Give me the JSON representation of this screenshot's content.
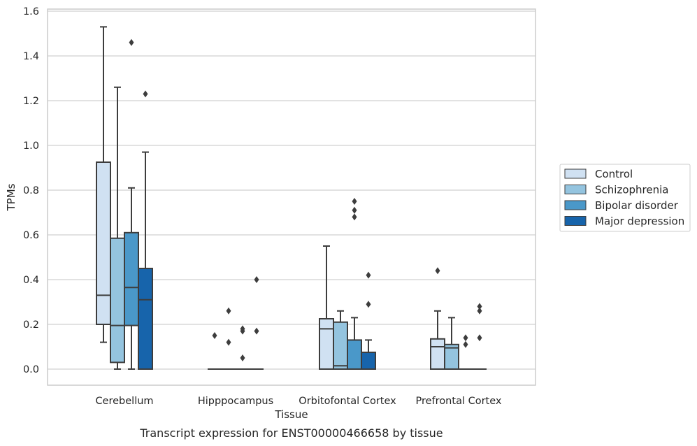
{
  "chart_data": {
    "type": "boxplot",
    "caption": "Transcript expression for ENST00000466658 by tissue",
    "xlabel": "Tissue",
    "ylabel": "TPMs",
    "ylim": [
      -0.07,
      1.61
    ],
    "yticks": [
      "0.0",
      "0.2",
      "0.4",
      "0.6",
      "0.8",
      "1.0",
      "1.2",
      "1.4",
      "1.6"
    ],
    "grid": "horizontal",
    "legend_position": "right",
    "categories": [
      "Cerebellum",
      "Hipppocampus",
      "Orbitofontal Cortex",
      "Prefrontal Cortex"
    ],
    "series": [
      {
        "name": "Control",
        "color": "#d0e1f2",
        "boxes": [
          {
            "whislo": 0.12,
            "q1": 0.2,
            "med": 0.33,
            "q3": 0.925,
            "whishi": 1.53,
            "fliers": []
          },
          {
            "whislo": 0,
            "q1": 0,
            "med": 0,
            "q3": 0,
            "whishi": 0,
            "fliers": [
              0.15
            ]
          },
          {
            "whislo": 0,
            "q1": 0,
            "med": 0.18,
            "q3": 0.225,
            "whishi": 0.55,
            "fliers": []
          },
          {
            "whislo": 0,
            "q1": 0,
            "med": 0.1,
            "q3": 0.135,
            "whishi": 0.26,
            "fliers": [
              0.44
            ]
          }
        ]
      },
      {
        "name": "Schizophrenia",
        "color": "#94c4df",
        "boxes": [
          {
            "whislo": 0,
            "q1": 0.03,
            "med": 0.195,
            "q3": 0.585,
            "whishi": 1.26,
            "fliers": []
          },
          {
            "whislo": 0,
            "q1": 0,
            "med": 0,
            "q3": 0,
            "whishi": 0,
            "fliers": [
              0.12,
              0.26
            ]
          },
          {
            "whislo": 0,
            "q1": 0,
            "med": 0.015,
            "q3": 0.21,
            "whishi": 0.26,
            "fliers": []
          },
          {
            "whislo": 0,
            "q1": 0,
            "med": 0.095,
            "q3": 0.11,
            "whishi": 0.23,
            "fliers": []
          }
        ]
      },
      {
        "name": "Bipolar disorder",
        "color": "#4a98c9",
        "boxes": [
          {
            "whislo": 0,
            "q1": 0.195,
            "med": 0.365,
            "q3": 0.61,
            "whishi": 0.81,
            "fliers": [
              1.46
            ]
          },
          {
            "whislo": 0,
            "q1": 0,
            "med": 0,
            "q3": 0,
            "whishi": 0,
            "fliers": [
              0.05,
              0.17,
              0.18
            ]
          },
          {
            "whislo": 0,
            "q1": 0,
            "med": 0,
            "q3": 0.13,
            "whishi": 0.23,
            "fliers": [
              0.68,
              0.71,
              0.75
            ]
          },
          {
            "whislo": 0,
            "q1": 0,
            "med": 0,
            "q3": 0,
            "whishi": 0,
            "fliers": [
              0.11,
              0.14
            ]
          }
        ]
      },
      {
        "name": "Major depression",
        "color": "#1764ab",
        "boxes": [
          {
            "whislo": 0,
            "q1": 0,
            "med": 0.31,
            "q3": 0.45,
            "whishi": 0.97,
            "fliers": [
              1.23
            ]
          },
          {
            "whislo": 0,
            "q1": 0,
            "med": 0,
            "q3": 0,
            "whishi": 0,
            "fliers": [
              0.17,
              0.4
            ]
          },
          {
            "whislo": 0,
            "q1": 0,
            "med": 0,
            "q3": 0.075,
            "whishi": 0.13,
            "fliers": [
              0.29,
              0.42
            ]
          },
          {
            "whislo": 0,
            "q1": 0,
            "med": 0,
            "q3": 0,
            "whishi": 0,
            "fliers": [
              0.14,
              0.26,
              0.28
            ]
          }
        ]
      }
    ]
  }
}
